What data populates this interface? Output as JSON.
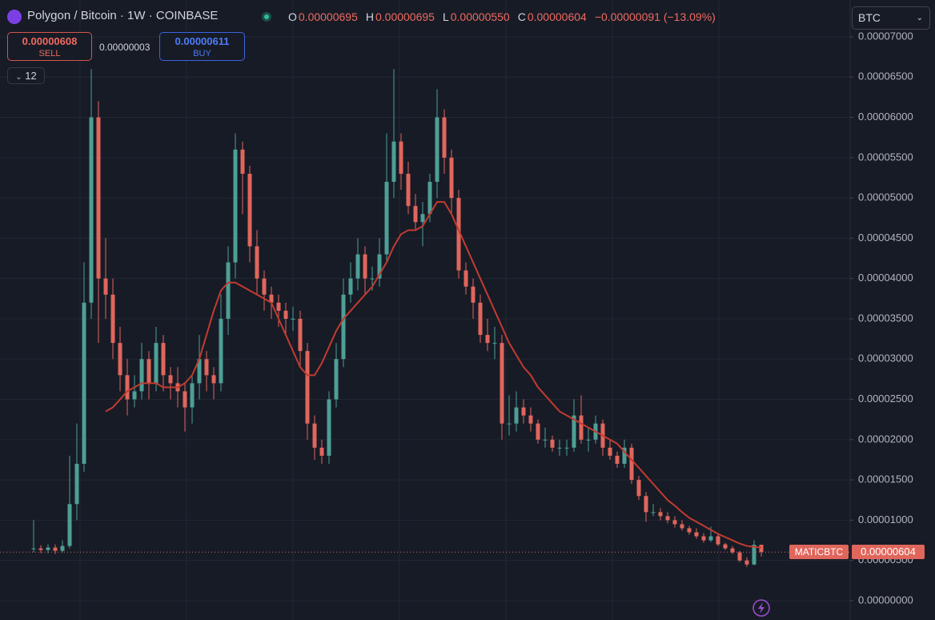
{
  "header": {
    "title": "Polygon / Bitcoin · 1W · COINBASE",
    "ohlc": [
      {
        "key": "O",
        "value": "0.00000695"
      },
      {
        "key": "H",
        "value": "0.00000695"
      },
      {
        "key": "L",
        "value": "0.00000550"
      },
      {
        "key": "C",
        "value": "0.00000604"
      }
    ],
    "change": "−0.00000091 (−13.09%)"
  },
  "trade": {
    "sell_price": "0.00000608",
    "sell": "SELL",
    "spread": "0.00000003",
    "buy_price": "0.00000611",
    "buy": "BUY"
  },
  "indicators_count": "12",
  "currency": "BTC",
  "price_tag": {
    "symbol": "MATICBTC",
    "label": "0.00000604"
  },
  "chart_data": {
    "type": "candlestick",
    "up_color": "#4e9f95",
    "down_color": "#e0665c",
    "ma_color": "#c23b30",
    "grid": true,
    "ylim": [
      -2.39e-06,
      7.457e-05
    ],
    "yticks": [
      {
        "value": 0,
        "label": "0.00000000"
      },
      {
        "value": 5e-06,
        "label": "0.00000500"
      },
      {
        "value": 1e-05,
        "label": "0.00001000"
      },
      {
        "value": 1.5e-05,
        "label": "0.00001500"
      },
      {
        "value": 2e-05,
        "label": "0.00002000"
      },
      {
        "value": 2.5e-05,
        "label": "0.00002500"
      },
      {
        "value": 3e-05,
        "label": "0.00003000"
      },
      {
        "value": 3.5e-05,
        "label": "0.00003500"
      },
      {
        "value": 4e-05,
        "label": "0.00004000"
      },
      {
        "value": 4.5e-05,
        "label": "0.00004500"
      },
      {
        "value": 5e-05,
        "label": "0.00005000"
      },
      {
        "value": 5.5e-05,
        "label": "0.00005500"
      },
      {
        "value": 6e-05,
        "label": "0.00006000"
      },
      {
        "value": 6.5e-05,
        "label": "0.00006500"
      },
      {
        "value": 7e-05,
        "label": "0.00007000"
      }
    ],
    "open": [
      6.4e-06,
      6.5e-06,
      6.3e-06,
      6.6e-06,
      6.2e-06,
      6.8e-06,
      1.2e-05,
      1.7e-05,
      3.7e-05,
      6e-05,
      4e-05,
      3.8e-05,
      3.2e-05,
      2.8e-05,
      2.5e-05,
      2.6e-05,
      3e-05,
      2.7e-05,
      3.2e-05,
      2.8e-05,
      2.7e-05,
      2.6e-05,
      2.4e-05,
      2.7e-05,
      3e-05,
      2.8e-05,
      2.7e-05,
      3.5e-05,
      4.2e-05,
      5.6e-05,
      5.3e-05,
      4.4e-05,
      4e-05,
      3.8e-05,
      3.7e-05,
      3.6e-05,
      3.5e-05,
      3.5e-05,
      3.1e-05,
      2.2e-05,
      1.9e-05,
      1.8e-05,
      2.5e-05,
      3e-05,
      3.8e-05,
      4e-05,
      4.3e-05,
      4e-05,
      4e-05,
      4.3e-05,
      5.2e-05,
      5.7e-05,
      5.3e-05,
      4.9e-05,
      4.7e-05,
      4.8e-05,
      5.2e-05,
      6e-05,
      5.5e-05,
      5e-05,
      4.1e-05,
      3.9e-05,
      3.7e-05,
      3.3e-05,
      3.2e-05,
      3.2e-05,
      2.2e-05,
      2.2e-05,
      2.4e-05,
      2.3e-05,
      2.2e-05,
      2e-05,
      2e-05,
      1.9e-05,
      1.9e-05,
      1.9e-05,
      2.3e-05,
      2e-05,
      2e-05,
      2.2e-05,
      1.9e-05,
      1.8e-05,
      1.7e-05,
      1.9e-05,
      1.5e-05,
      1.3e-05,
      1.1e-05,
      1.1e-05,
      1.05e-05,
      1e-05,
      9.5e-06,
      9e-06,
      8.5e-06,
      8e-06,
      7.5e-06,
      8e-06,
      7e-06,
      6.5e-06,
      6e-06,
      5e-06,
      4.5e-06,
      6.95e-06
    ],
    "high": [
      1e-05,
      6.9e-06,
      7e-06,
      7e-06,
      7.5e-06,
      1.8e-05,
      2.2e-05,
      4.2e-05,
      6.6e-05,
      6.2e-05,
      4.5e-05,
      4e-05,
      3.4e-05,
      3e-05,
      2.8e-05,
      3.2e-05,
      3.1e-05,
      3.4e-05,
      3.3e-05,
      2.9e-05,
      2.9e-05,
      2.7e-05,
      2.8e-05,
      3.3e-05,
      3.1e-05,
      2.9e-05,
      3.8e-05,
      4.4e-05,
      5.8e-05,
      5.7e-05,
      5.4e-05,
      4.6e-05,
      4.1e-05,
      3.9e-05,
      3.8e-05,
      3.7e-05,
      3.65e-05,
      3.6e-05,
      3.2e-05,
      2.3e-05,
      2e-05,
      2.6e-05,
      3.2e-05,
      4e-05,
      4.2e-05,
      4.5e-05,
      4.4e-05,
      4.15e-05,
      4.5e-05,
      5.8e-05,
      6.6e-05,
      5.8e-05,
      5.45e-05,
      5.05e-05,
      4.95e-05,
      5.3e-05,
      6.35e-05,
      6.1e-05,
      5.6e-05,
      5.1e-05,
      4.2e-05,
      4e-05,
      3.8e-05,
      3.5e-05,
      3.4e-05,
      3.3e-05,
      2.55e-05,
      2.6e-05,
      2.5e-05,
      2.4e-05,
      2.25e-05,
      2.15e-05,
      2.05e-05,
      2e-05,
      2e-05,
      2.5e-05,
      2.55e-05,
      2.15e-05,
      2.3e-05,
      2.25e-05,
      2e-05,
      1.85e-05,
      2e-05,
      1.95e-05,
      1.55e-05,
      1.35e-05,
      1.2e-05,
      1.15e-05,
      1.1e-05,
      1.05e-05,
      1e-05,
      9.3e-06,
      9e-06,
      8.4e-06,
      9.2e-06,
      8.2e-06,
      7.2e-06,
      6.8e-06,
      6.2e-06,
      5.4e-06,
      7.5e-06,
      6.95e-06
    ],
    "low": [
      6e-06,
      5.9e-06,
      5.9e-06,
      5.8e-06,
      6e-06,
      6.5e-06,
      1e-05,
      1.6e-05,
      3.5e-05,
      3.2e-05,
      3.5e-05,
      3e-05,
      2.6e-05,
      2.3e-05,
      2.4e-05,
      2.5e-05,
      2.5e-05,
      2.6e-05,
      2.6e-05,
      2.5e-05,
      2.4e-05,
      2.1e-05,
      2.2e-05,
      2.5e-05,
      2.6e-05,
      2.5e-05,
      2.6e-05,
      3.3e-05,
      4e-05,
      4.8e-05,
      4.2e-05,
      3.8e-05,
      3.6e-05,
      3.5e-05,
      3.4e-05,
      3.3e-05,
      3.35e-05,
      2.9e-05,
      2e-05,
      1.75e-05,
      1.7e-05,
      1.7e-05,
      2.4e-05,
      2.9e-05,
      3.7e-05,
      3.85e-05,
      3.8e-05,
      3.85e-05,
      3.9e-05,
      4.2e-05,
      5e-05,
      5.1e-05,
      4.8e-05,
      4.6e-05,
      4.4e-05,
      4.7e-05,
      5e-05,
      5.3e-05,
      4.8e-05,
      4e-05,
      3.8e-05,
      3.5e-05,
      3.2e-05,
      3.1e-05,
      3e-05,
      2e-05,
      2.05e-05,
      2.1e-05,
      2.2e-05,
      2.1e-05,
      1.95e-05,
      1.9e-05,
      1.85e-05,
      1.8e-05,
      1.8e-05,
      1.85e-05,
      1.95e-05,
      1.85e-05,
      1.95e-05,
      1.8e-05,
      1.75e-05,
      1.65e-05,
      1.65e-05,
      1.45e-05,
      1.25e-05,
      9.8e-06,
      1.05e-05,
      1e-05,
      9.6e-06,
      9.1e-06,
      8.7e-06,
      8.2e-06,
      7.7e-06,
      7.2e-06,
      7.3e-06,
      6.8e-06,
      6.3e-06,
      5.8e-06,
      4.8e-06,
      4.2e-06,
      4.4e-06,
      5.5e-06
    ],
    "close": [
      6.5e-06,
      6.3e-06,
      6.6e-06,
      6.2e-06,
      6.8e-06,
      1.2e-05,
      1.7e-05,
      3.7e-05,
      6e-05,
      4e-05,
      3.8e-05,
      3.2e-05,
      2.8e-05,
      2.5e-05,
      2.6e-05,
      3e-05,
      2.7e-05,
      3.2e-05,
      2.8e-05,
      2.7e-05,
      2.6e-05,
      2.4e-05,
      2.7e-05,
      3e-05,
      2.8e-05,
      2.7e-05,
      3.5e-05,
      4.2e-05,
      5.6e-05,
      5.3e-05,
      4.4e-05,
      4e-05,
      3.8e-05,
      3.7e-05,
      3.6e-05,
      3.5e-05,
      3.5e-05,
      3.1e-05,
      2.2e-05,
      1.9e-05,
      1.8e-05,
      2.5e-05,
      3e-05,
      3.8e-05,
      4e-05,
      4.3e-05,
      4e-05,
      4e-05,
      4.3e-05,
      5.2e-05,
      5.7e-05,
      5.3e-05,
      4.9e-05,
      4.7e-05,
      4.8e-05,
      5.2e-05,
      6e-05,
      5.5e-05,
      5e-05,
      4.1e-05,
      3.9e-05,
      3.7e-05,
      3.3e-05,
      3.2e-05,
      3.2e-05,
      2.2e-05,
      2.2e-05,
      2.4e-05,
      2.3e-05,
      2.2e-05,
      2e-05,
      2e-05,
      1.9e-05,
      1.9e-05,
      1.9e-05,
      2.3e-05,
      2e-05,
      2e-05,
      2.2e-05,
      1.9e-05,
      1.8e-05,
      1.7e-05,
      1.9e-05,
      1.5e-05,
      1.3e-05,
      1.1e-05,
      1.1e-05,
      1.05e-05,
      1e-05,
      9.5e-06,
      9e-06,
      8.5e-06,
      8e-06,
      7.5e-06,
      8e-06,
      7e-06,
      6.5e-06,
      6e-06,
      5e-06,
      4.5e-06,
      6.95e-06,
      6.04e-06
    ],
    "ma": [
      null,
      null,
      null,
      null,
      null,
      null,
      null,
      null,
      null,
      null,
      2.35e-05,
      2.4e-05,
      2.5e-05,
      2.6e-05,
      2.65e-05,
      2.7e-05,
      2.7e-05,
      2.7e-05,
      2.65e-05,
      2.65e-05,
      2.65e-05,
      2.7e-05,
      2.8e-05,
      3e-05,
      3.3e-05,
      3.6e-05,
      3.85e-05,
      3.95e-05,
      3.95e-05,
      3.9e-05,
      3.85e-05,
      3.8e-05,
      3.75e-05,
      3.7e-05,
      3.5e-05,
      3.3e-05,
      3.1e-05,
      2.9e-05,
      2.8e-05,
      2.8e-05,
      2.95e-05,
      3.15e-05,
      3.35e-05,
      3.5e-05,
      3.6e-05,
      3.7e-05,
      3.8e-05,
      3.9e-05,
      4.05e-05,
      4.2e-05,
      4.4e-05,
      4.55e-05,
      4.6e-05,
      4.6e-05,
      4.65e-05,
      4.8e-05,
      4.95e-05,
      4.95e-05,
      4.8e-05,
      4.6e-05,
      4.4e-05,
      4.2e-05,
      4e-05,
      3.8e-05,
      3.6e-05,
      3.4e-05,
      3.2e-05,
      3.05e-05,
      2.9e-05,
      2.8e-05,
      2.65e-05,
      2.55e-05,
      2.45e-05,
      2.35e-05,
      2.3e-05,
      2.25e-05,
      2.2e-05,
      2.15e-05,
      2.1e-05,
      2.05e-05,
      2e-05,
      1.95e-05,
      1.85e-05,
      1.75e-05,
      1.65e-05,
      1.55e-05,
      1.45e-05,
      1.35e-05,
      1.25e-05,
      1.18e-05,
      1.1e-05,
      1.03e-05,
      9.8e-06,
      9.3e-06,
      8.8e-06,
      8.3e-06,
      7.9e-06,
      7.5e-06,
      7.1e-06,
      6.8e-06,
      6.7e-06,
      6.6e-06
    ]
  }
}
